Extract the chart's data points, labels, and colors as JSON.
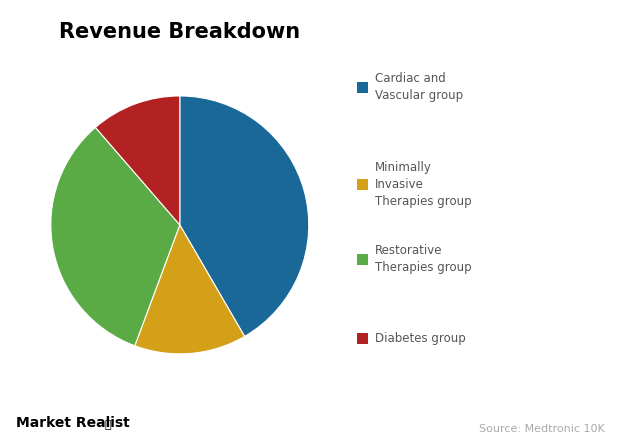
{
  "title": "Revenue Breakdown",
  "segments": [
    {
      "label": "Cardiac and\nVascular group",
      "value": 38.5,
      "color": "#1a6898"
    },
    {
      "label": "Minimally\nInvasive\nTherapies group",
      "value": 13.0,
      "color": "#d4a017"
    },
    {
      "label": "Restorative\nTherapies group",
      "value": 30.5,
      "color": "#5aab46"
    },
    {
      "label": "Diabetes group",
      "value": 10.5,
      "color": "#b22222"
    }
  ],
  "startangle": 90,
  "counterclock": false,
  "title_fontsize": 15,
  "title_fontweight": "bold",
  "background_color": "#ffffff",
  "legend_fontsize": 8.5,
  "legend_text_color": "#555555",
  "watermark_text": "Market Realist",
  "watermark_fontsize": 10,
  "source_text": "Source: Medtronic 10K",
  "source_fontsize": 8,
  "source_color": "#aaaaaa"
}
